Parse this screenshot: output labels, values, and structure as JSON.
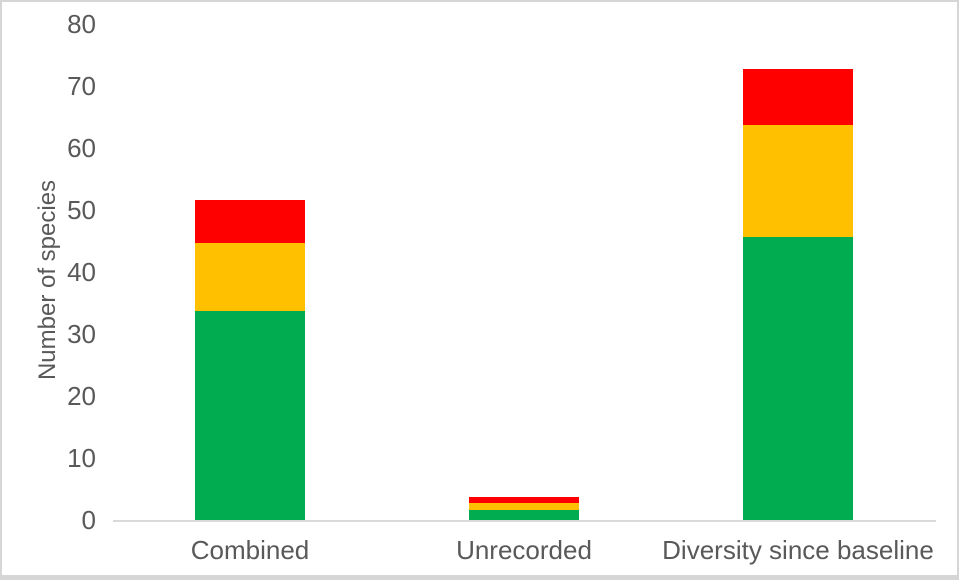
{
  "window": {
    "background": "#ffffff",
    "border_color": "#d6d6d6"
  },
  "chart_data": {
    "type": "bar",
    "stacked": true,
    "title": "",
    "categories": [
      "Combined",
      "Unrecorded",
      "Diversity since baseline"
    ],
    "series": [
      {
        "name": "Green (bottom segment)",
        "color": "#00AC4F",
        "values": [
          34,
          2,
          46
        ]
      },
      {
        "name": "Amber (middle segment)",
        "color": "#FFC000",
        "values": [
          11,
          1,
          18
        ]
      },
      {
        "name": "Red (top segment)",
        "color": "#FF0000",
        "values": [
          7,
          1,
          9
        ]
      }
    ],
    "stack_totals": [
      52,
      4,
      73
    ],
    "xlabel": "",
    "ylabel": "Number of species",
    "ylim": [
      0,
      80
    ],
    "yticks": [
      0,
      10,
      20,
      30,
      40,
      50,
      60,
      70,
      80
    ],
    "grid": false,
    "legend": "none",
    "axis_line_color": "#D9D9D9",
    "text_color": "#595959"
  }
}
